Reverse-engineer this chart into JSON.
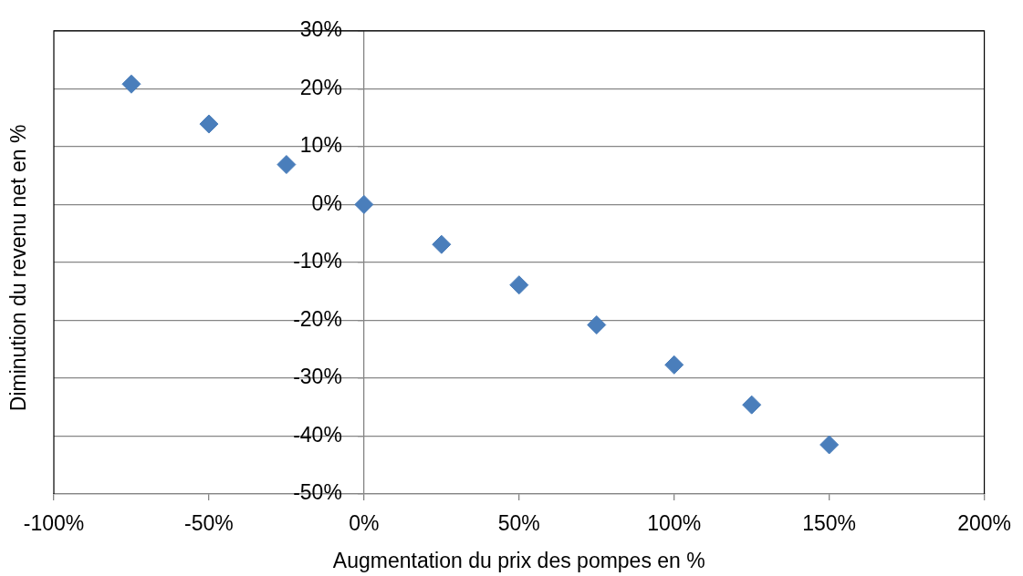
{
  "chart_data": {
    "type": "scatter",
    "xlabel": "Augmentation du prix des pompes en %",
    "ylabel": "Diminution du revenu net en %",
    "x": [
      -75,
      -50,
      -25,
      0,
      25,
      50,
      75,
      100,
      125,
      150
    ],
    "values": [
      20.8,
      13.9,
      6.9,
      0,
      -6.9,
      -13.9,
      -20.8,
      -27.7,
      -34.6,
      -41.5
    ],
    "color": "#4a7ebb",
    "marker": "diamond",
    "grid": "y",
    "xlim": [
      -100,
      200
    ],
    "xticks": [
      {
        "value": -100,
        "label": "-100%"
      },
      {
        "value": -50,
        "label": "-50%"
      },
      {
        "value": 0,
        "label": "0%"
      },
      {
        "value": 50,
        "label": "50%"
      },
      {
        "value": 100,
        "label": "100%"
      },
      {
        "value": 150,
        "label": "150%"
      },
      {
        "value": 200,
        "label": "200%"
      }
    ],
    "ylim": [
      -50,
      30
    ],
    "yticks": [
      {
        "value": -50,
        "label": "-50%"
      },
      {
        "value": -40,
        "label": "-40%"
      },
      {
        "value": -30,
        "label": "-30%"
      },
      {
        "value": -20,
        "label": "-20%"
      },
      {
        "value": -10,
        "label": "-10%"
      },
      {
        "value": 0,
        "label": "0%"
      },
      {
        "value": 10,
        "label": "10%"
      },
      {
        "value": 20,
        "label": "20%"
      },
      {
        "value": 30,
        "label": "30%"
      }
    ]
  }
}
